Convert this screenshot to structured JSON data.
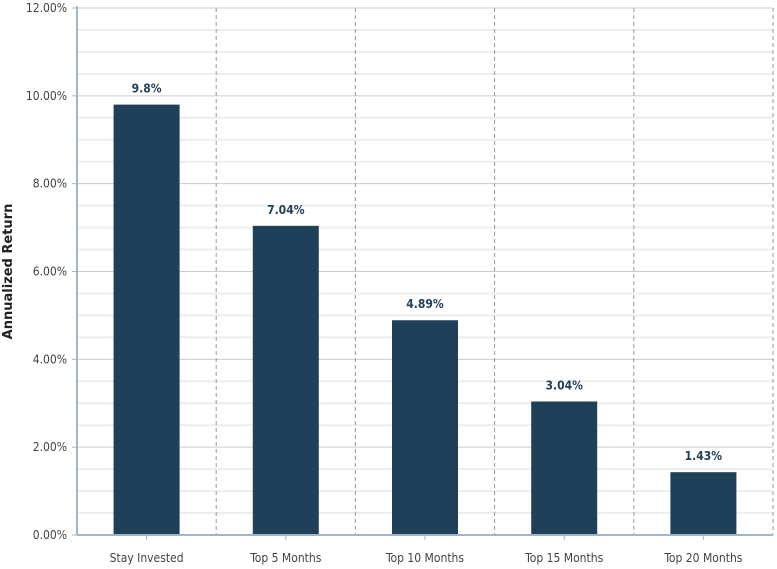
{
  "chart_data": {
    "type": "bar",
    "title": "",
    "xlabel": "",
    "ylabel": "Annualized Return",
    "categories": [
      "Stay Invested",
      "Top 5 Months",
      "Top 10 Months",
      "Top 15 Months",
      "Top 20 Months"
    ],
    "values": [
      9.8,
      7.04,
      4.89,
      3.04,
      1.43
    ],
    "data_labels": [
      "9.8%",
      "7.04%",
      "4.89%",
      "3.04%",
      "1.43%"
    ],
    "ylim": [
      0,
      12
    ],
    "y_ticks": [
      0,
      2,
      4,
      6,
      8,
      10,
      12
    ],
    "y_tick_labels": [
      "0.00%",
      "2.00%",
      "4.00%",
      "6.00%",
      "8.00%",
      "10.00%",
      "12.00%"
    ],
    "grid": true,
    "legend": "none",
    "colors": {
      "bar": "#1e4059",
      "data_label": "#24405a",
      "axis": "#a3b3cc",
      "grid_major": "#cccccc",
      "grid_minor": "#ededed",
      "category_divider": "#999999"
    }
  }
}
